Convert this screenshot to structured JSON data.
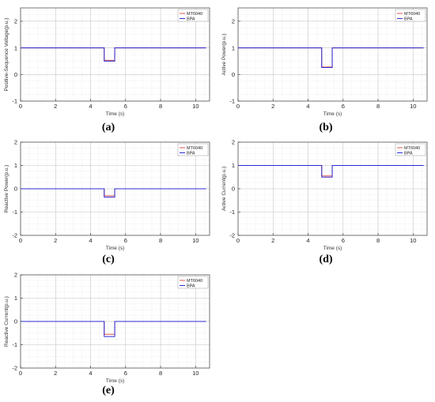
{
  "panel_labels": [
    "(a)",
    "(b)",
    "(c)",
    "(d)",
    "(e)"
  ],
  "chart_data": [
    {
      "type": "line",
      "xlabel": "Time (s)",
      "ylabel": "Positive-Sequence Voltage(p.u.)",
      "xlim": [
        0,
        10.8
      ],
      "ylim": [
        -1,
        2.5
      ],
      "xticks": [
        "0",
        "2",
        "4",
        "6",
        "8",
        "10"
      ],
      "yticks": [
        "-1",
        "0",
        "1",
        "2"
      ],
      "legend": "top-right",
      "grid": true,
      "series": [
        {
          "name": "MT6040",
          "color": "#e0554a",
          "x": [
            0,
            4.78,
            4.78,
            5.38,
            5.38,
            10.6
          ],
          "y": [
            1,
            1,
            0.53,
            0.53,
            1,
            1
          ]
        },
        {
          "name": "BPA",
          "color": "#2b2bd6",
          "x": [
            0,
            4.78,
            4.78,
            5.38,
            5.38,
            10.6
          ],
          "y": [
            1,
            1,
            0.5,
            0.5,
            1,
            1
          ]
        }
      ]
    },
    {
      "type": "line",
      "xlabel": "Time (s)",
      "ylabel": "Active Power(p.u.)",
      "xlim": [
        0,
        10.8
      ],
      "ylim": [
        -1,
        2.5
      ],
      "xticks": [
        "0",
        "2",
        "4",
        "6",
        "8",
        "10"
      ],
      "yticks": [
        "-1",
        "0",
        "1",
        "2"
      ],
      "legend": "top-right",
      "grid": true,
      "series": [
        {
          "name": "MT6040",
          "color": "#e0554a",
          "x": [
            0,
            4.78,
            4.78,
            5.38,
            5.38,
            10.6
          ],
          "y": [
            1,
            1,
            0.28,
            0.28,
            1,
            1
          ]
        },
        {
          "name": "BPA",
          "color": "#2b2bd6",
          "x": [
            0,
            4.78,
            4.78,
            5.38,
            5.38,
            10.6
          ],
          "y": [
            1,
            1,
            0.26,
            0.26,
            1,
            1
          ]
        }
      ]
    },
    {
      "type": "line",
      "xlabel": "Time (s)",
      "ylabel": "Reactive Power(p.u.)",
      "xlim": [
        0,
        10.8
      ],
      "ylim": [
        -2,
        2
      ],
      "xticks": [
        "0",
        "2",
        "4",
        "6",
        "8",
        "10"
      ],
      "yticks": [
        "-2",
        "-1",
        "0",
        "1",
        "2"
      ],
      "legend": "top-right",
      "grid": true,
      "series": [
        {
          "name": "MT6040",
          "color": "#e0554a",
          "x": [
            0,
            4.78,
            4.78,
            5.38,
            5.38,
            10.6
          ],
          "y": [
            0,
            0,
            -0.3,
            -0.3,
            0,
            0
          ]
        },
        {
          "name": "BPA",
          "color": "#2b2bd6",
          "x": [
            0,
            4.78,
            4.78,
            5.38,
            5.38,
            10.6
          ],
          "y": [
            0,
            0,
            -0.36,
            -0.36,
            0,
            0
          ]
        }
      ]
    },
    {
      "type": "line",
      "xlabel": "Time (s)",
      "ylabel": "Active Current(p.u.)",
      "xlim": [
        0,
        10.8
      ],
      "ylim": [
        -2,
        2
      ],
      "xticks": [
        "0",
        "2",
        "4",
        "6",
        "8",
        "10"
      ],
      "yticks": [
        "-2",
        "-1",
        "0",
        "1",
        "2"
      ],
      "legend": "top-right",
      "grid": true,
      "series": [
        {
          "name": "MT6040",
          "color": "#e0554a",
          "x": [
            0,
            4.78,
            4.78,
            5.38,
            5.38,
            10.6
          ],
          "y": [
            1,
            1,
            0.55,
            0.55,
            1,
            1
          ]
        },
        {
          "name": "BPA",
          "color": "#2b2bd6",
          "x": [
            0,
            4.78,
            4.78,
            5.38,
            5.38,
            10.6
          ],
          "y": [
            1,
            1,
            0.5,
            0.5,
            1,
            1
          ]
        }
      ]
    },
    {
      "type": "line",
      "xlabel": "Time (s)",
      "ylabel": "Reactive Current(p.u.)",
      "xlim": [
        0,
        10.8
      ],
      "ylim": [
        -2,
        2
      ],
      "xticks": [
        "0",
        "2",
        "4",
        "6",
        "8",
        "10"
      ],
      "yticks": [
        "-2",
        "-1",
        "0",
        "1",
        "2"
      ],
      "legend": "top-right",
      "grid": true,
      "series": [
        {
          "name": "MT6040",
          "color": "#e0554a",
          "x": [
            0,
            4.78,
            4.78,
            5.38,
            5.38,
            10.6
          ],
          "y": [
            0,
            0,
            -0.55,
            -0.55,
            0,
            0
          ]
        },
        {
          "name": "BPA",
          "color": "#2b2bd6",
          "x": [
            0,
            4.78,
            4.78,
            5.38,
            5.38,
            10.6
          ],
          "y": [
            0,
            0,
            -0.65,
            -0.65,
            0,
            0
          ]
        }
      ]
    }
  ]
}
